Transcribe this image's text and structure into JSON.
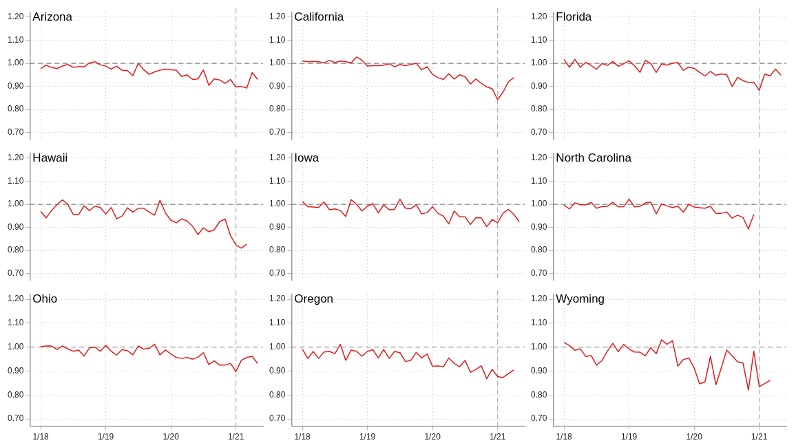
{
  "chart_data": [
    {
      "type": "line",
      "title": "Arizona",
      "color": "#e31a1c",
      "tick_labels": "y",
      "grid": true,
      "ylim": [
        0.67,
        1.22
      ],
      "xlim": [
        "2017-11",
        "2021-06"
      ],
      "yticks": [
        {
          "value": 0.7,
          "label": "0.70"
        },
        {
          "value": 0.8,
          "label": "0.80"
        },
        {
          "value": 0.9,
          "label": "0.90"
        },
        {
          "value": 1.0,
          "label": "1.00"
        },
        {
          "value": 1.1,
          "label": "1.10"
        },
        {
          "value": 1.2,
          "label": "1.20"
        }
      ],
      "xticks": [
        {
          "value": "2018-01",
          "label": null
        },
        {
          "value": "2019-01",
          "label": null
        },
        {
          "value": "2020-01",
          "label": null
        },
        {
          "value": "2021-01",
          "label": null
        }
      ],
      "ref_lines": [
        {
          "axis": "y",
          "value": 1,
          "line_style": "dashed",
          "color": "#808080"
        },
        {
          "axis": "x",
          "value": "2021-01",
          "line_style": "dashed",
          "color": "#b0b0b0"
        }
      ],
      "x": [
        "2018-01",
        "2018-02",
        "2018-03",
        "2018-04",
        "2018-05",
        "2018-06",
        "2018-07",
        "2018-08",
        "2018-09",
        "2018-10",
        "2018-11",
        "2018-12",
        "2019-01",
        "2019-02",
        "2019-03",
        "2019-04",
        "2019-05",
        "2019-06",
        "2019-07",
        "2019-08",
        "2019-09",
        "2019-10",
        "2019-11",
        "2019-12",
        "2020-01",
        "2020-02",
        "2020-03",
        "2020-04",
        "2020-05",
        "2020-06",
        "2020-07",
        "2020-08",
        "2020-09",
        "2020-10",
        "2020-11",
        "2020-12",
        "2021-01",
        "2021-02",
        "2021-03",
        "2021-04",
        "2021-05"
      ],
      "values": [
        0.977,
        0.992,
        0.982,
        0.977,
        0.988,
        0.995,
        0.983,
        0.985,
        0.985,
        1.002,
        1.007,
        0.993,
        0.988,
        0.975,
        0.988,
        0.97,
        0.968,
        0.947,
        1.0,
        0.972,
        0.952,
        0.963,
        0.97,
        0.975,
        0.972,
        0.97,
        0.943,
        0.95,
        0.93,
        0.932,
        0.972,
        0.905,
        0.932,
        0.928,
        0.913,
        0.93,
        0.897,
        0.9,
        0.893,
        0.96,
        0.93
      ]
    },
    {
      "type": "line",
      "title": "California",
      "color": "#e31a1c",
      "tick_labels": "y",
      "grid": true,
      "ylim": [
        0.67,
        1.22
      ],
      "xlim": [
        "2017-11",
        "2021-06"
      ],
      "yticks": [
        {
          "value": 0.7,
          "label": "0.70"
        },
        {
          "value": 0.8,
          "label": "0.80"
        },
        {
          "value": 0.9,
          "label": "0.90"
        },
        {
          "value": 1.0,
          "label": "1.00"
        },
        {
          "value": 1.1,
          "label": "1.10"
        },
        {
          "value": 1.2,
          "label": "1.20"
        }
      ],
      "xticks": [
        {
          "value": "2018-01",
          "label": null
        },
        {
          "value": "2019-01",
          "label": null
        },
        {
          "value": "2020-01",
          "label": null
        },
        {
          "value": "2021-01",
          "label": null
        }
      ],
      "ref_lines": [
        {
          "axis": "y",
          "value": 1,
          "line_style": "dashed",
          "color": "#808080"
        },
        {
          "axis": "x",
          "value": "2021-01",
          "line_style": "dashed",
          "color": "#b0b0b0"
        }
      ],
      "x": [
        "2018-01",
        "2018-02",
        "2018-03",
        "2018-04",
        "2018-05",
        "2018-06",
        "2018-07",
        "2018-08",
        "2018-09",
        "2018-10",
        "2018-11",
        "2018-12",
        "2019-01",
        "2019-02",
        "2019-03",
        "2019-04",
        "2019-05",
        "2019-06",
        "2019-07",
        "2019-08",
        "2019-09",
        "2019-10",
        "2019-11",
        "2019-12",
        "2020-01",
        "2020-02",
        "2020-03",
        "2020-04",
        "2020-05",
        "2020-06",
        "2020-07",
        "2020-08",
        "2020-09",
        "2020-10",
        "2020-11",
        "2020-12",
        "2021-01",
        "2021-02",
        "2021-03",
        "2021-04"
      ],
      "values": [
        1.01,
        1.007,
        1.008,
        1.007,
        1.002,
        1.013,
        1.003,
        1.01,
        1.007,
        1.002,
        1.027,
        1.013,
        0.988,
        0.99,
        0.99,
        0.992,
        0.998,
        0.985,
        0.995,
        0.99,
        0.995,
        1.0,
        0.972,
        0.985,
        0.952,
        0.938,
        0.93,
        0.955,
        0.932,
        0.95,
        0.942,
        0.91,
        0.932,
        0.913,
        0.898,
        0.89,
        0.843,
        0.875,
        0.92,
        0.938
      ]
    },
    {
      "type": "line",
      "title": "Florida",
      "color": "#e31a1c",
      "tick_labels": "y",
      "grid": true,
      "ylim": [
        0.67,
        1.22
      ],
      "xlim": [
        "2017-11",
        "2021-06"
      ],
      "yticks": [
        {
          "value": 0.7,
          "label": "0.70"
        },
        {
          "value": 0.8,
          "label": "0.80"
        },
        {
          "value": 0.9,
          "label": "0.90"
        },
        {
          "value": 1.0,
          "label": "1.00"
        },
        {
          "value": 1.1,
          "label": "1.10"
        },
        {
          "value": 1.2,
          "label": "1.20"
        }
      ],
      "xticks": [
        {
          "value": "2018-01",
          "label": null
        },
        {
          "value": "2019-01",
          "label": null
        },
        {
          "value": "2020-01",
          "label": null
        },
        {
          "value": "2021-01",
          "label": null
        }
      ],
      "ref_lines": [
        {
          "axis": "y",
          "value": 1,
          "line_style": "dashed",
          "color": "#808080"
        },
        {
          "axis": "x",
          "value": "2021-01",
          "line_style": "dashed",
          "color": "#b0b0b0"
        }
      ],
      "x": [
        "2018-01",
        "2018-02",
        "2018-03",
        "2018-04",
        "2018-05",
        "2018-06",
        "2018-07",
        "2018-08",
        "2018-09",
        "2018-10",
        "2018-11",
        "2018-12",
        "2019-01",
        "2019-02",
        "2019-03",
        "2019-04",
        "2019-05",
        "2019-06",
        "2019-07",
        "2019-08",
        "2019-09",
        "2019-10",
        "2019-11",
        "2019-12",
        "2020-01",
        "2020-02",
        "2020-03",
        "2020-04",
        "2020-05",
        "2020-06",
        "2020-07",
        "2020-08",
        "2020-09",
        "2020-10",
        "2020-11",
        "2020-12",
        "2021-01",
        "2021-02",
        "2021-03",
        "2021-04",
        "2021-05"
      ],
      "values": [
        1.017,
        0.983,
        1.017,
        0.983,
        1.004,
        0.991,
        0.974,
        0.999,
        0.991,
        1.008,
        0.987,
        0.998,
        1.011,
        0.989,
        0.961,
        1.013,
        0.998,
        0.96,
        0.998,
        0.992,
        1.0,
        1.003,
        0.969,
        0.984,
        0.978,
        0.961,
        0.945,
        0.965,
        0.948,
        0.954,
        0.951,
        0.899,
        0.939,
        0.925,
        0.917,
        0.918,
        0.883,
        0.953,
        0.946,
        0.975,
        0.949
      ]
    },
    {
      "type": "line",
      "title": "Hawaii",
      "color": "#e31a1c",
      "tick_labels": "y",
      "grid": true,
      "ylim": [
        0.67,
        1.22
      ],
      "xlim": [
        "2017-11",
        "2021-06"
      ],
      "yticks": [
        {
          "value": 0.7,
          "label": "0.70"
        },
        {
          "value": 0.8,
          "label": "0.80"
        },
        {
          "value": 0.9,
          "label": "0.90"
        },
        {
          "value": 1.0,
          "label": "1.00"
        },
        {
          "value": 1.1,
          "label": "1.10"
        },
        {
          "value": 1.2,
          "label": "1.20"
        }
      ],
      "xticks": [
        {
          "value": "2018-01",
          "label": null
        },
        {
          "value": "2019-01",
          "label": null
        },
        {
          "value": "2020-01",
          "label": null
        },
        {
          "value": "2021-01",
          "label": null
        }
      ],
      "ref_lines": [
        {
          "axis": "y",
          "value": 1,
          "line_style": "dashed",
          "color": "#808080"
        },
        {
          "axis": "x",
          "value": "2021-01",
          "line_style": "dashed",
          "color": "#b0b0b0"
        }
      ],
      "x": [
        "2018-01",
        "2018-02",
        "2018-03",
        "2018-04",
        "2018-05",
        "2018-06",
        "2018-07",
        "2018-08",
        "2018-09",
        "2018-10",
        "2018-11",
        "2018-12",
        "2019-01",
        "2019-02",
        "2019-03",
        "2019-04",
        "2019-05",
        "2019-06",
        "2019-07",
        "2019-08",
        "2019-09",
        "2019-10",
        "2019-11",
        "2019-12",
        "2020-01",
        "2020-02",
        "2020-03",
        "2020-04",
        "2020-05",
        "2020-06",
        "2020-07",
        "2020-08",
        "2020-09",
        "2020-10",
        "2020-11",
        "2020-12",
        "2021-01",
        "2021-02",
        "2021-03"
      ],
      "values": [
        0.969,
        0.941,
        0.973,
        0.998,
        1.019,
        1.0,
        0.956,
        0.956,
        0.993,
        0.973,
        0.992,
        0.986,
        0.958,
        0.986,
        0.937,
        0.949,
        0.985,
        0.966,
        0.983,
        0.983,
        0.966,
        0.953,
        1.017,
        0.963,
        0.931,
        0.92,
        0.937,
        0.927,
        0.905,
        0.869,
        0.898,
        0.881,
        0.89,
        0.925,
        0.936,
        0.864,
        0.824,
        0.81,
        0.827
      ]
    },
    {
      "type": "line",
      "title": "Iowa",
      "color": "#e31a1c",
      "tick_labels": "y",
      "grid": true,
      "ylim": [
        0.67,
        1.22
      ],
      "xlim": [
        "2017-11",
        "2021-06"
      ],
      "yticks": [
        {
          "value": 0.7,
          "label": "0.70"
        },
        {
          "value": 0.8,
          "label": "0.80"
        },
        {
          "value": 0.9,
          "label": "0.90"
        },
        {
          "value": 1.0,
          "label": "1.00"
        },
        {
          "value": 1.1,
          "label": "1.10"
        },
        {
          "value": 1.2,
          "label": "1.20"
        }
      ],
      "xticks": [
        {
          "value": "2018-01",
          "label": null
        },
        {
          "value": "2019-01",
          "label": null
        },
        {
          "value": "2020-01",
          "label": null
        },
        {
          "value": "2021-01",
          "label": null
        }
      ],
      "ref_lines": [
        {
          "axis": "y",
          "value": 1,
          "line_style": "dashed",
          "color": "#808080"
        },
        {
          "axis": "x",
          "value": "2021-01",
          "line_style": "dashed",
          "color": "#b0b0b0"
        }
      ],
      "x": [
        "2018-01",
        "2018-02",
        "2018-03",
        "2018-04",
        "2018-05",
        "2018-06",
        "2018-07",
        "2018-08",
        "2018-09",
        "2018-10",
        "2018-11",
        "2018-12",
        "2019-01",
        "2019-02",
        "2019-03",
        "2019-04",
        "2019-05",
        "2019-06",
        "2019-07",
        "2019-08",
        "2019-09",
        "2019-10",
        "2019-11",
        "2019-12",
        "2020-01",
        "2020-02",
        "2020-03",
        "2020-04",
        "2020-05",
        "2020-06",
        "2020-07",
        "2020-08",
        "2020-09",
        "2020-10",
        "2020-11",
        "2020-12",
        "2021-01",
        "2021-02",
        "2021-03",
        "2021-04",
        "2021-05"
      ],
      "values": [
        1.012,
        0.99,
        0.988,
        0.986,
        1.01,
        0.976,
        0.98,
        0.973,
        0.947,
        1.02,
        1.0,
        0.971,
        0.992,
        1.003,
        0.963,
        0.998,
        0.976,
        0.978,
        1.022,
        0.983,
        0.981,
        0.998,
        0.958,
        0.964,
        0.99,
        0.961,
        0.949,
        0.915,
        0.971,
        0.946,
        0.946,
        0.912,
        0.942,
        0.941,
        0.903,
        0.934,
        0.92,
        0.961,
        0.978,
        0.956,
        0.925
      ]
    },
    {
      "type": "line",
      "title": "North Carolina",
      "color": "#e31a1c",
      "tick_labels": "y",
      "grid": true,
      "ylim": [
        0.67,
        1.22
      ],
      "xlim": [
        "2017-11",
        "2021-06"
      ],
      "yticks": [
        {
          "value": 0.7,
          "label": "0.70"
        },
        {
          "value": 0.8,
          "label": "0.80"
        },
        {
          "value": 0.9,
          "label": "0.90"
        },
        {
          "value": 1.0,
          "label": "1.00"
        },
        {
          "value": 1.1,
          "label": "1.10"
        },
        {
          "value": 1.2,
          "label": "1.20"
        }
      ],
      "xticks": [
        {
          "value": "2018-01",
          "label": null
        },
        {
          "value": "2019-01",
          "label": null
        },
        {
          "value": "2020-01",
          "label": null
        },
        {
          "value": "2021-01",
          "label": null
        }
      ],
      "ref_lines": [
        {
          "axis": "y",
          "value": 1,
          "line_style": "dashed",
          "color": "#808080"
        },
        {
          "axis": "x",
          "value": "2021-01",
          "line_style": "dashed",
          "color": "#b0b0b0"
        }
      ],
      "x": [
        "2018-01",
        "2018-02",
        "2018-03",
        "2018-04",
        "2018-05",
        "2018-06",
        "2018-07",
        "2018-08",
        "2018-09",
        "2018-10",
        "2018-11",
        "2018-12",
        "2019-01",
        "2019-02",
        "2019-03",
        "2019-04",
        "2019-05",
        "2019-06",
        "2019-07",
        "2019-08",
        "2019-09",
        "2019-10",
        "2019-11",
        "2019-12",
        "2020-01",
        "2020-02",
        "2020-03",
        "2020-04",
        "2020-05",
        "2020-06",
        "2020-07",
        "2020-08",
        "2020-09",
        "2020-10",
        "2020-11",
        "2020-12"
      ],
      "values": [
        0.997,
        0.98,
        1.006,
        0.998,
        0.998,
        1.008,
        0.983,
        0.99,
        0.991,
        1.009,
        0.989,
        0.99,
        1.022,
        0.989,
        0.991,
        1.006,
        1.009,
        0.959,
        1.002,
        0.993,
        0.986,
        0.992,
        0.966,
        1.0,
        0.988,
        0.985,
        0.983,
        0.991,
        0.961,
        0.961,
        0.967,
        0.94,
        0.953,
        0.943,
        0.893,
        0.956
      ]
    },
    {
      "type": "line",
      "title": "Ohio",
      "color": "#e31a1c",
      "grid": true,
      "ylim": [
        0.67,
        1.22
      ],
      "xlim": [
        "2017-11",
        "2021-06"
      ],
      "yticks": [
        {
          "value": 0.7,
          "label": "0.70"
        },
        {
          "value": 0.8,
          "label": "0.80"
        },
        {
          "value": 0.9,
          "label": "0.90"
        },
        {
          "value": 1.0,
          "label": "1.00"
        },
        {
          "value": 1.1,
          "label": "1.10"
        },
        {
          "value": 1.2,
          "label": "1.20"
        }
      ],
      "xticks": [
        {
          "value": "2018-01",
          "label": "1/18"
        },
        {
          "value": "2019-01",
          "label": "1/19"
        },
        {
          "value": "2020-01",
          "label": "1/20"
        },
        {
          "value": "2021-01",
          "label": "1/21"
        }
      ],
      "ref_lines": [
        {
          "axis": "y",
          "value": 1,
          "line_style": "dashed",
          "color": "#808080"
        },
        {
          "axis": "x",
          "value": "2021-01",
          "line_style": "dashed",
          "color": "#b0b0b0"
        }
      ],
      "x": [
        "2018-01",
        "2018-02",
        "2018-03",
        "2018-04",
        "2018-05",
        "2018-06",
        "2018-07",
        "2018-08",
        "2018-09",
        "2018-10",
        "2018-11",
        "2018-12",
        "2019-01",
        "2019-02",
        "2019-03",
        "2019-04",
        "2019-05",
        "2019-06",
        "2019-07",
        "2019-08",
        "2019-09",
        "2019-10",
        "2019-11",
        "2019-12",
        "2020-01",
        "2020-02",
        "2020-03",
        "2020-04",
        "2020-05",
        "2020-06",
        "2020-07",
        "2020-08",
        "2020-09",
        "2020-10",
        "2020-11",
        "2020-12",
        "2021-01",
        "2021-02",
        "2021-03",
        "2021-04",
        "2021-05"
      ],
      "values": [
        1.002,
        1.005,
        1.005,
        0.99,
        1.005,
        0.993,
        0.983,
        0.988,
        0.963,
        0.997,
        1.0,
        0.983,
        1.008,
        0.983,
        0.967,
        0.99,
        0.985,
        0.968,
        1.005,
        0.992,
        0.995,
        1.012,
        0.968,
        0.988,
        0.972,
        0.957,
        0.953,
        0.957,
        0.95,
        0.958,
        0.977,
        0.927,
        0.943,
        0.925,
        0.925,
        0.932,
        0.898,
        0.945,
        0.957,
        0.962,
        0.932
      ]
    },
    {
      "type": "line",
      "title": "Oregon",
      "color": "#e31a1c",
      "grid": true,
      "ylim": [
        0.67,
        1.22
      ],
      "xlim": [
        "2017-11",
        "2021-06"
      ],
      "yticks": [
        {
          "value": 0.7,
          "label": "0.70"
        },
        {
          "value": 0.8,
          "label": "0.80"
        },
        {
          "value": 0.9,
          "label": "0.90"
        },
        {
          "value": 1.0,
          "label": "1.00"
        },
        {
          "value": 1.1,
          "label": "1.10"
        },
        {
          "value": 1.2,
          "label": "1.20"
        }
      ],
      "xticks": [
        {
          "value": "2018-01",
          "label": "1/18"
        },
        {
          "value": "2019-01",
          "label": "1/19"
        },
        {
          "value": "2020-01",
          "label": "1/20"
        },
        {
          "value": "2021-01",
          "label": "1/21"
        }
      ],
      "ref_lines": [
        {
          "axis": "y",
          "value": 1,
          "line_style": "dashed",
          "color": "#808080"
        },
        {
          "axis": "x",
          "value": "2021-01",
          "line_style": "dashed",
          "color": "#b0b0b0"
        }
      ],
      "x": [
        "2018-01",
        "2018-02",
        "2018-03",
        "2018-04",
        "2018-05",
        "2018-06",
        "2018-07",
        "2018-08",
        "2018-09",
        "2018-10",
        "2018-11",
        "2018-12",
        "2019-01",
        "2019-02",
        "2019-03",
        "2019-04",
        "2019-05",
        "2019-06",
        "2019-07",
        "2019-08",
        "2019-09",
        "2019-10",
        "2019-11",
        "2019-12",
        "2020-01",
        "2020-02",
        "2020-03",
        "2020-04",
        "2020-05",
        "2020-06",
        "2020-07",
        "2020-08",
        "2020-09",
        "2020-10",
        "2020-11",
        "2020-12",
        "2021-01",
        "2021-02",
        "2021-03",
        "2021-04"
      ],
      "values": [
        0.992,
        0.953,
        0.982,
        0.953,
        0.98,
        0.982,
        0.973,
        1.012,
        0.945,
        0.988,
        0.983,
        0.962,
        0.982,
        0.99,
        0.955,
        0.99,
        0.953,
        0.982,
        0.977,
        0.94,
        0.945,
        0.978,
        0.955,
        0.972,
        0.92,
        0.922,
        0.918,
        0.955,
        0.932,
        0.918,
        0.945,
        0.895,
        0.907,
        0.922,
        0.868,
        0.907,
        0.877,
        0.873,
        0.89,
        0.905
      ]
    },
    {
      "type": "line",
      "title": "Wyoming",
      "color": "#e31a1c",
      "grid": true,
      "ylim": [
        0.67,
        1.22
      ],
      "xlim": [
        "2017-11",
        "2021-06"
      ],
      "yticks": [
        {
          "value": 0.7,
          "label": "0.70"
        },
        {
          "value": 0.8,
          "label": "0.80"
        },
        {
          "value": 0.9,
          "label": "0.90"
        },
        {
          "value": 1.0,
          "label": "1.00"
        },
        {
          "value": 1.1,
          "label": "1.10"
        },
        {
          "value": 1.2,
          "label": "1.20"
        }
      ],
      "xticks": [
        {
          "value": "2018-01",
          "label": "1/18"
        },
        {
          "value": "2019-01",
          "label": "1/19"
        },
        {
          "value": "2020-01",
          "label": "1/20"
        },
        {
          "value": "2021-01",
          "label": "1/21"
        }
      ],
      "ref_lines": [
        {
          "axis": "y",
          "value": 1,
          "line_style": "dashed",
          "color": "#808080"
        },
        {
          "axis": "x",
          "value": "2021-01",
          "line_style": "dashed",
          "color": "#b0b0b0"
        }
      ],
      "x": [
        "2018-01",
        "2018-02",
        "2018-03",
        "2018-04",
        "2018-05",
        "2018-06",
        "2018-07",
        "2018-08",
        "2018-09",
        "2018-10",
        "2018-11",
        "2018-12",
        "2019-01",
        "2019-02",
        "2019-03",
        "2019-04",
        "2019-05",
        "2019-06",
        "2019-07",
        "2019-08",
        "2019-09",
        "2019-10",
        "2019-11",
        "2019-12",
        "2020-01",
        "2020-02",
        "2020-03",
        "2020-04",
        "2020-05",
        "2020-06",
        "2020-07",
        "2020-08",
        "2020-09",
        "2020-10",
        "2020-11",
        "2020-12",
        "2021-01",
        "2021-02",
        "2021-03"
      ],
      "values": [
        1.02,
        1.007,
        0.987,
        0.993,
        0.961,
        0.965,
        0.925,
        0.944,
        0.983,
        1.016,
        0.981,
        1.012,
        0.992,
        0.98,
        0.979,
        0.964,
        0.998,
        0.973,
        1.031,
        1.012,
        1.027,
        0.921,
        0.948,
        0.955,
        0.913,
        0.847,
        0.855,
        0.962,
        0.843,
        0.913,
        0.988,
        0.964,
        0.939,
        0.934,
        0.821,
        0.983,
        0.835,
        0.848,
        0.862
      ]
    }
  ]
}
